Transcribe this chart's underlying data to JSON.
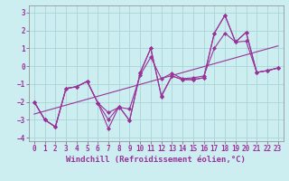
{
  "xlabel": "Windchill (Refroidissement éolien,°C)",
  "background_color": "#cceef0",
  "grid_color": "#aad4d8",
  "line_color": "#993399",
  "xlim": [
    -0.5,
    23.5
  ],
  "ylim": [
    -4.2,
    3.4
  ],
  "xticks": [
    0,
    1,
    2,
    3,
    4,
    5,
    6,
    7,
    8,
    9,
    10,
    11,
    12,
    13,
    14,
    15,
    16,
    17,
    18,
    19,
    20,
    21,
    22,
    23
  ],
  "yticks": [
    -4,
    -3,
    -2,
    -1,
    0,
    1,
    2,
    3
  ],
  "series1": [
    [
      0,
      -2.0
    ],
    [
      1,
      -3.0
    ],
    [
      2,
      -3.4
    ],
    [
      3,
      -1.25
    ],
    [
      4,
      -1.15
    ],
    [
      5,
      -0.85
    ],
    [
      6,
      -2.05
    ],
    [
      7,
      -3.0
    ],
    [
      8,
      -2.25
    ],
    [
      9,
      -3.05
    ],
    [
      10,
      -0.4
    ],
    [
      11,
      1.0
    ],
    [
      12,
      -1.7
    ],
    [
      13,
      -0.55
    ],
    [
      14,
      -0.75
    ],
    [
      15,
      -0.75
    ],
    [
      16,
      -0.65
    ],
    [
      17,
      1.85
    ],
    [
      18,
      2.85
    ],
    [
      19,
      1.35
    ],
    [
      20,
      1.9
    ],
    [
      21,
      -0.35
    ],
    [
      22,
      -0.25
    ],
    [
      23,
      -0.1
    ]
  ],
  "series2": [
    [
      0,
      -2.0
    ],
    [
      1,
      -3.0
    ],
    [
      2,
      -3.4
    ],
    [
      3,
      -1.25
    ],
    [
      4,
      -1.15
    ],
    [
      5,
      -0.85
    ],
    [
      6,
      -2.05
    ],
    [
      7,
      -3.5
    ],
    [
      8,
      -2.25
    ],
    [
      9,
      -3.05
    ],
    [
      10,
      -0.35
    ],
    [
      11,
      1.0
    ],
    [
      12,
      -1.65
    ],
    [
      13,
      -0.55
    ],
    [
      14,
      -0.75
    ],
    [
      15,
      -0.75
    ],
    [
      16,
      -0.65
    ],
    [
      17,
      1.85
    ],
    [
      18,
      2.85
    ],
    [
      19,
      1.35
    ],
    [
      20,
      1.9
    ],
    [
      21,
      -0.35
    ],
    [
      22,
      -0.25
    ],
    [
      23,
      -0.1
    ]
  ],
  "series3": [
    [
      0,
      -2.0
    ],
    [
      1,
      -3.0
    ],
    [
      2,
      -3.4
    ],
    [
      3,
      -1.25
    ],
    [
      4,
      -1.15
    ],
    [
      5,
      -0.85
    ],
    [
      6,
      -2.05
    ],
    [
      7,
      -2.6
    ],
    [
      8,
      -2.3
    ],
    [
      9,
      -2.4
    ],
    [
      10,
      -0.5
    ],
    [
      11,
      0.5
    ],
    [
      12,
      -0.7
    ],
    [
      13,
      -0.4
    ],
    [
      14,
      -0.7
    ],
    [
      15,
      -0.65
    ],
    [
      16,
      -0.55
    ],
    [
      17,
      1.0
    ],
    [
      18,
      1.85
    ],
    [
      19,
      1.35
    ],
    [
      20,
      1.4
    ],
    [
      21,
      -0.35
    ],
    [
      22,
      -0.25
    ],
    [
      23,
      -0.1
    ]
  ],
  "font_color": "#993399",
  "tick_fontsize": 5.5,
  "label_fontsize": 6.5
}
